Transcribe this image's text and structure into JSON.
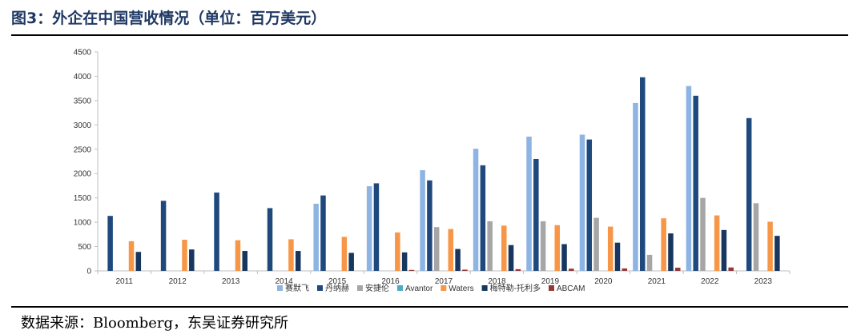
{
  "figure": {
    "title": "图3：外企在中国营收情况（单位：百万美元）",
    "source": "数据来源：Bloomberg，东吴证券研究所"
  },
  "chart_data": {
    "type": "bar",
    "categories": [
      "2011",
      "2012",
      "2013",
      "2014",
      "2015",
      "2016",
      "2017",
      "2018",
      "2019",
      "2020",
      "2021",
      "2022",
      "2023"
    ],
    "ylim": [
      0,
      4500
    ],
    "yticks": [
      0,
      500,
      1000,
      1500,
      2000,
      2500,
      3000,
      3500,
      4000,
      4500
    ],
    "grid": false,
    "legend_position": "bottom",
    "series": [
      {
        "name": "赛默飞",
        "color": "#8eb4e3",
        "values": [
          null,
          null,
          null,
          null,
          1380,
          1740,
          2070,
          2510,
          2760,
          2800,
          3450,
          3800,
          null
        ]
      },
      {
        "name": "丹纳赫",
        "color": "#1f497d",
        "values": [
          1130,
          1440,
          1610,
          1290,
          1550,
          1800,
          1860,
          2170,
          2300,
          2700,
          3980,
          3600,
          3140
        ]
      },
      {
        "name": "安捷伦",
        "color": "#a6a6a6",
        "values": [
          null,
          null,
          null,
          null,
          null,
          null,
          900,
          1020,
          1020,
          1090,
          330,
          1500,
          1390
        ]
      },
      {
        "name": "Avantor",
        "color": "#4bacc6",
        "values": [
          null,
          null,
          null,
          null,
          null,
          null,
          null,
          null,
          null,
          null,
          null,
          null,
          null
        ]
      },
      {
        "name": "Waters",
        "color": "#f79646",
        "values": [
          610,
          640,
          630,
          650,
          700,
          790,
          860,
          930,
          940,
          910,
          1080,
          1140,
          1010
        ]
      },
      {
        "name": "梅特勒-托利多",
        "color": "#17375e",
        "values": [
          390,
          440,
          410,
          410,
          370,
          380,
          450,
          530,
          550,
          580,
          770,
          840,
          720
        ]
      },
      {
        "name": "ABCAM",
        "color": "#953735",
        "values": [
          null,
          null,
          null,
          null,
          null,
          20,
          25,
          35,
          45,
          50,
          65,
          70,
          null
        ]
      }
    ]
  }
}
